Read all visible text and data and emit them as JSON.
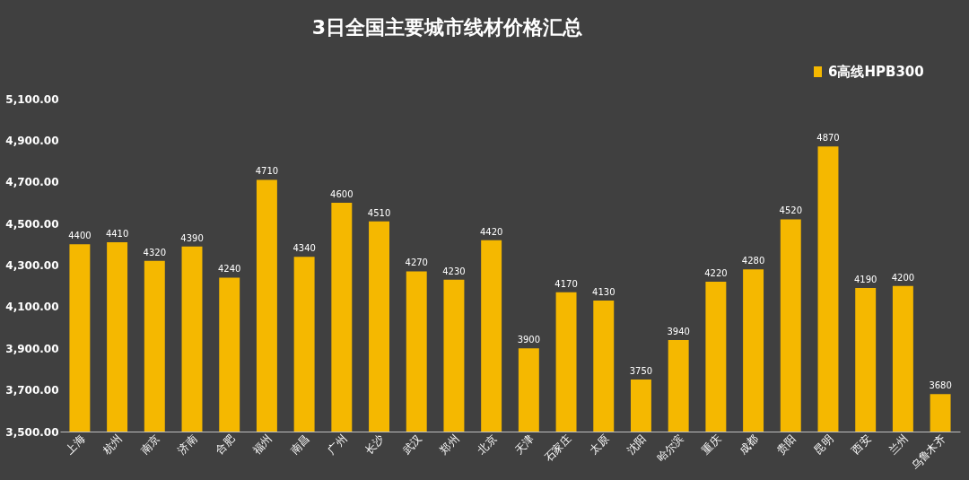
{
  "chart_data": {
    "type": "bar",
    "title": "3日全国主要城市线材价格汇总",
    "categories": [
      "上海",
      "杭州",
      "南京",
      "济南",
      "合肥",
      "福州",
      "南昌",
      "广州",
      "长沙",
      "武汉",
      "郑州",
      "北京",
      "天津",
      "石家庄",
      "太原",
      "沈阳",
      "哈尔滨",
      "重庆",
      "成都",
      "贵阳",
      "昆明",
      "西安",
      "兰州",
      "乌鲁木齐"
    ],
    "series": [
      {
        "name": "6高线HPB300",
        "color": "#f5b800",
        "values": [
          4400,
          4410,
          4320,
          4390,
          4240,
          4710,
          4340,
          4600,
          4510,
          4270,
          4230,
          4420,
          3900,
          4170,
          4130,
          3750,
          3940,
          4220,
          4280,
          4520,
          4870,
          4190,
          4200,
          3680
        ]
      }
    ],
    "ylim": [
      3500,
      5100
    ],
    "yticks": [
      {
        "value": 3500,
        "label": "3,500.00"
      },
      {
        "value": 3700,
        "label": "3,700.00"
      },
      {
        "value": 3900,
        "label": "3,900.00"
      },
      {
        "value": 4100,
        "label": "4,100.00"
      },
      {
        "value": 4300,
        "label": "4,300.00"
      },
      {
        "value": 4500,
        "label": "4,500.00"
      },
      {
        "value": 4700,
        "label": "4,700.00"
      },
      {
        "value": 4900,
        "label": "4,900.00"
      },
      {
        "value": 5100,
        "label": "5,100.00"
      }
    ],
    "grid": false,
    "legend": "top right",
    "data_labels": true
  }
}
